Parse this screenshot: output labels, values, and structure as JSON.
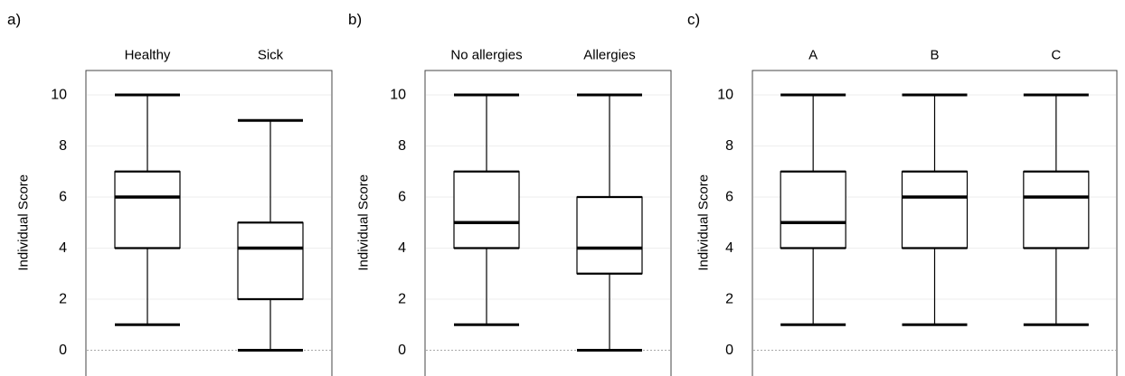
{
  "chart_data": [
    {
      "type": "boxplot",
      "panel_label": "a)",
      "ylabel": "Individual Score",
      "ylim": [
        -1,
        11
      ],
      "yticks": [
        0,
        2,
        4,
        6,
        8,
        10
      ],
      "categories": [
        "Healthy",
        "Sick"
      ],
      "boxes": [
        {
          "whisker_low": 1,
          "q1": 4,
          "median": 6,
          "q3": 7,
          "whisker_high": 10
        },
        {
          "whisker_low": 0,
          "q1": 2,
          "median": 4,
          "q3": 5,
          "whisker_high": 9
        }
      ],
      "reference_line": 0
    },
    {
      "type": "boxplot",
      "panel_label": "b)",
      "ylabel": "Individual Score",
      "ylim": [
        -1,
        11
      ],
      "yticks": [
        0,
        2,
        4,
        6,
        8,
        10
      ],
      "categories": [
        "No allergies",
        "Allergies"
      ],
      "boxes": [
        {
          "whisker_low": 1,
          "q1": 4,
          "median": 5,
          "q3": 7,
          "whisker_high": 10
        },
        {
          "whisker_low": 0,
          "q1": 3,
          "median": 4,
          "q3": 6,
          "whisker_high": 10
        }
      ],
      "reference_line": 0
    },
    {
      "type": "boxplot",
      "panel_label": "c)",
      "ylabel": "Individual Score",
      "ylim": [
        -1,
        11
      ],
      "yticks": [
        0,
        2,
        4,
        6,
        8,
        10
      ],
      "categories": [
        "A",
        "B",
        "C"
      ],
      "boxes": [
        {
          "whisker_low": 1,
          "q1": 4,
          "median": 5,
          "q3": 7,
          "whisker_high": 10
        },
        {
          "whisker_low": 1,
          "q1": 4,
          "median": 6,
          "q3": 7,
          "whisker_high": 10
        },
        {
          "whisker_low": 1,
          "q1": 4,
          "median": 6,
          "q3": 7,
          "whisker_high": 10
        }
      ],
      "reference_line": 0
    }
  ]
}
